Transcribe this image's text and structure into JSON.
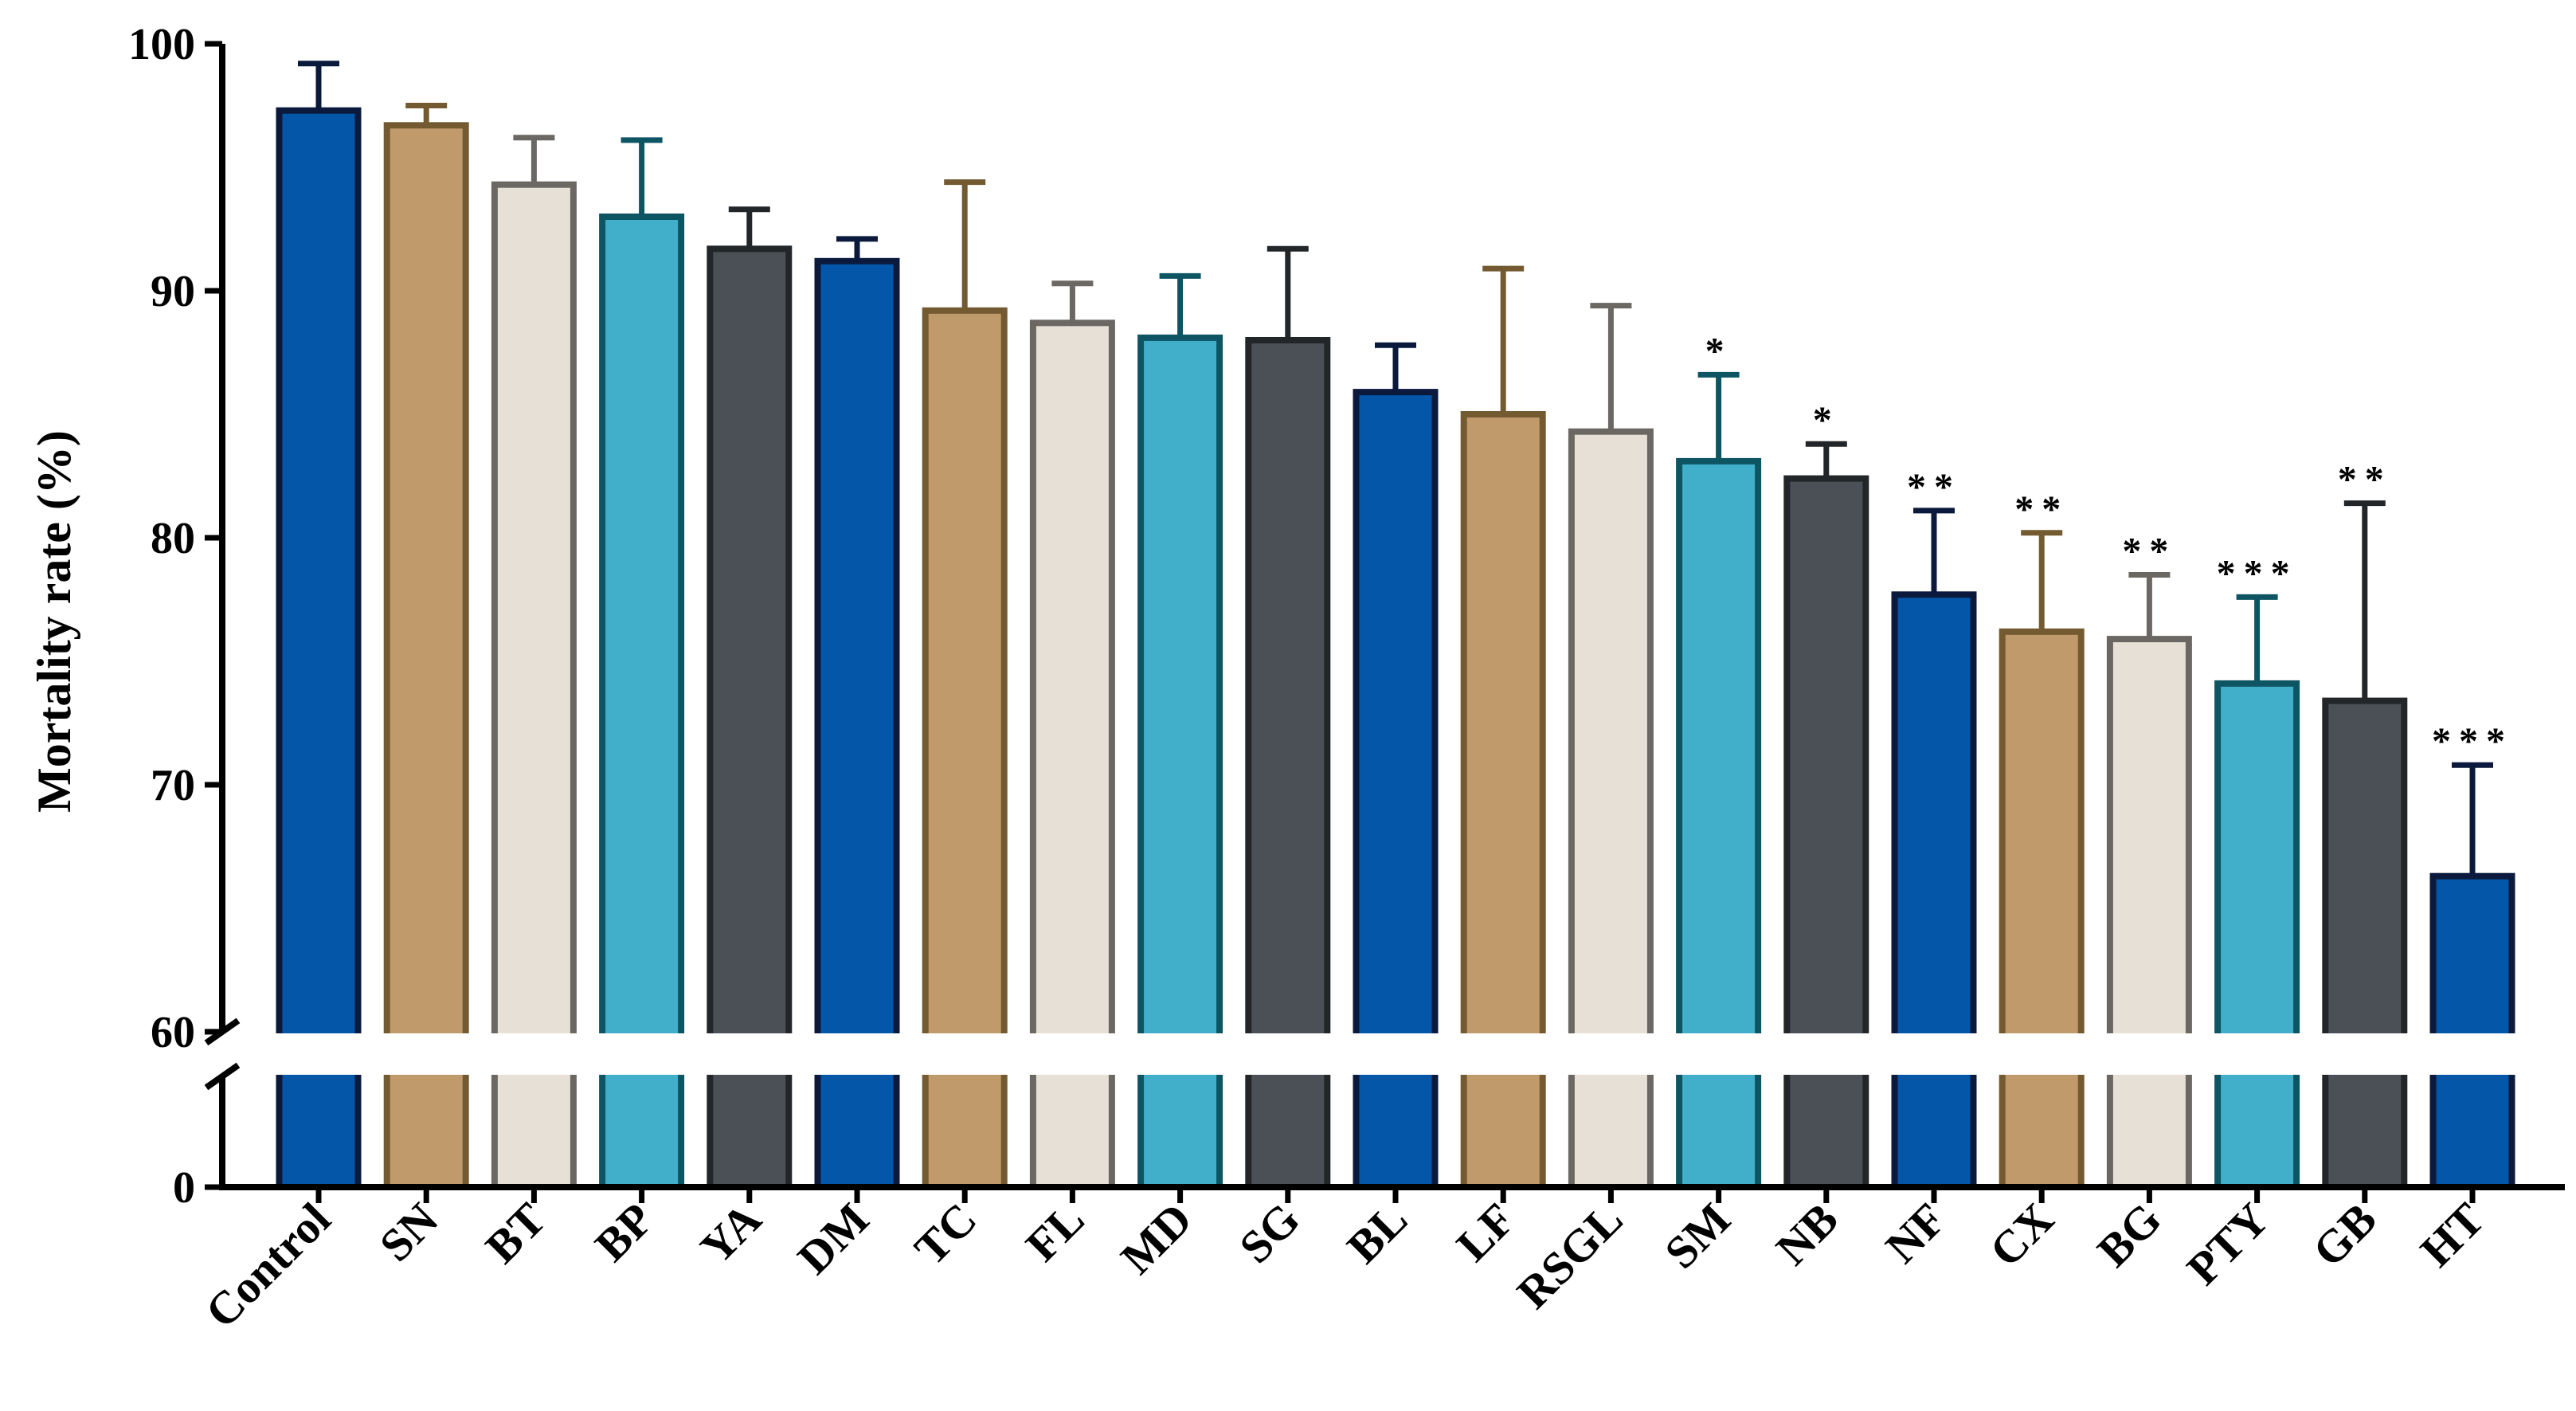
{
  "chart_data": {
    "type": "bar",
    "ylabel": "Mortality rate (%)",
    "xlabel": "",
    "title": "",
    "axis_break": {
      "lower_range": [
        0,
        60
      ],
      "upper_range": [
        60,
        100
      ]
    },
    "ylim": [
      0,
      100
    ],
    "y_ticks": [
      0,
      60,
      70,
      80,
      90,
      100
    ],
    "grid": false,
    "categories": [
      "Control",
      "SN",
      "BT",
      "BP",
      "YA",
      "DM",
      "TC",
      "FL",
      "MD",
      "SG",
      "BL",
      "LF",
      "RSGL",
      "SM",
      "NB",
      "NF",
      "CX",
      "BG",
      "PTY",
      "GB",
      "HT"
    ],
    "values": [
      97.3,
      96.7,
      94.3,
      93.0,
      91.7,
      91.2,
      89.2,
      88.7,
      88.1,
      88.0,
      85.9,
      85.0,
      84.3,
      83.1,
      82.4,
      77.7,
      76.2,
      75.9,
      74.1,
      73.4,
      66.3
    ],
    "errors": [
      1.9,
      0.8,
      1.9,
      3.1,
      1.6,
      0.9,
      5.2,
      1.6,
      2.5,
      3.7,
      1.9,
      5.9,
      5.1,
      3.5,
      1.4,
      3.4,
      4.0,
      2.6,
      3.5,
      8.0,
      4.5
    ],
    "significance": [
      "",
      "",
      "",
      "",
      "",
      "",
      "",
      "",
      "",
      "",
      "",
      "",
      "",
      "*",
      "*",
      "**",
      "**",
      "**",
      "***",
      "**",
      "***"
    ],
    "colors": {
      "fills": [
        "#0356a8",
        "#c09a6b",
        "#e7e0d6",
        "#41afca",
        "#4b4f56"
      ],
      "strokes": [
        "#0b1a3c",
        "#735a31",
        "#6b6864",
        "#0e5563",
        "#232629"
      ],
      "axis": "#000000"
    },
    "legend": "none"
  }
}
